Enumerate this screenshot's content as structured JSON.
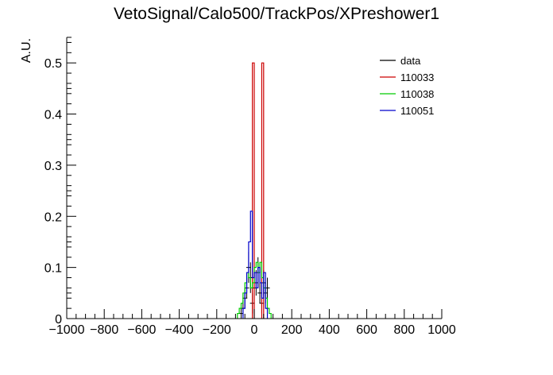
{
  "chart_data": {
    "type": "histogram",
    "title": "VetoSignal/Calo500/TrackPos/XPreshower1",
    "xlabel": "",
    "ylabel": "A.U.",
    "xlim": [
      -1000,
      1000
    ],
    "ylim": [
      0,
      0.55
    ],
    "x_ticks": [
      -1000,
      -800,
      -600,
      -400,
      -200,
      0,
      200,
      400,
      600,
      800,
      1000
    ],
    "x_tick_labels": [
      "−1000",
      "−800",
      "−600",
      "−400",
      "−200",
      "0",
      "200",
      "400",
      "600",
      "800",
      "1000"
    ],
    "y_ticks": [
      0,
      0.1,
      0.2,
      0.3,
      0.4,
      0.5
    ],
    "y_tick_labels": [
      "0",
      "0.1",
      "0.2",
      "0.3",
      "0.4",
      "0.5"
    ],
    "grid": false,
    "legend_position": "top-right",
    "series": [
      {
        "name": "data",
        "style": "points",
        "color": "#000000",
        "points": [
          {
            "x": -70,
            "y": 0.01,
            "err": 0.01
          },
          {
            "x": -60,
            "y": 0.02,
            "err": 0.015
          },
          {
            "x": -50,
            "y": 0.04,
            "err": 0.02
          },
          {
            "x": -40,
            "y": 0.06,
            "err": 0.02
          },
          {
            "x": -30,
            "y": 0.1,
            "err": 0.03
          },
          {
            "x": -20,
            "y": 0.08,
            "err": 0.03
          },
          {
            "x": -10,
            "y": 0.03,
            "err": 0.02
          },
          {
            "x": 0,
            "y": 0.06,
            "err": 0.025
          },
          {
            "x": 10,
            "y": 0.07,
            "err": 0.025
          },
          {
            "x": 20,
            "y": 0.09,
            "err": 0.03
          },
          {
            "x": 30,
            "y": 0.05,
            "err": 0.02
          },
          {
            "x": 40,
            "y": 0.03,
            "err": 0.02
          },
          {
            "x": 50,
            "y": 0.07,
            "err": 0.025
          },
          {
            "x": 60,
            "y": 0.05,
            "err": 0.02
          },
          {
            "x": 70,
            "y": 0.06,
            "err": 0.02
          }
        ]
      },
      {
        "name": "110033",
        "style": "step",
        "color": "#cc0000",
        "bins": [
          {
            "x0": -10,
            "x1": 0,
            "y": 0.5
          },
          {
            "x0": 40,
            "x1": 50,
            "y": 0.5
          }
        ]
      },
      {
        "name": "110038",
        "style": "step",
        "color": "#00cc00",
        "bins": [
          {
            "x0": -90,
            "x1": -80,
            "y": 0.01
          },
          {
            "x0": -80,
            "x1": -70,
            "y": 0.02
          },
          {
            "x0": -70,
            "x1": -60,
            "y": 0.03
          },
          {
            "x0": -60,
            "x1": -50,
            "y": 0.05
          },
          {
            "x0": -50,
            "x1": -40,
            "y": 0.07
          },
          {
            "x0": -40,
            "x1": -30,
            "y": 0.09
          },
          {
            "x0": -30,
            "x1": -20,
            "y": 0.08
          },
          {
            "x0": -20,
            "x1": -10,
            "y": 0.06
          },
          {
            "x0": -10,
            "x1": 0,
            "y": 0.07
          },
          {
            "x0": 0,
            "x1": 10,
            "y": 0.1
          },
          {
            "x0": 10,
            "x1": 20,
            "y": 0.11
          },
          {
            "x0": 20,
            "x1": 30,
            "y": 0.09
          },
          {
            "x0": 30,
            "x1": 40,
            "y": 0.11
          },
          {
            "x0": 40,
            "x1": 50,
            "y": 0.08
          },
          {
            "x0": 50,
            "x1": 60,
            "y": 0.06
          },
          {
            "x0": 60,
            "x1": 70,
            "y": 0.04
          },
          {
            "x0": 70,
            "x1": 80,
            "y": 0.02
          },
          {
            "x0": 80,
            "x1": 90,
            "y": 0.01
          }
        ]
      },
      {
        "name": "110051",
        "style": "step",
        "color": "#0000cc",
        "bins": [
          {
            "x0": -60,
            "x1": -50,
            "y": 0.02
          },
          {
            "x0": -50,
            "x1": -40,
            "y": 0.05
          },
          {
            "x0": -40,
            "x1": -30,
            "y": 0.09
          },
          {
            "x0": -30,
            "x1": -20,
            "y": 0.15
          },
          {
            "x0": -20,
            "x1": -10,
            "y": 0.21
          },
          {
            "x0": -10,
            "x1": 0,
            "y": 0.08
          },
          {
            "x0": 0,
            "x1": 10,
            "y": 0.09
          },
          {
            "x0": 10,
            "x1": 20,
            "y": 0.06
          },
          {
            "x0": 20,
            "x1": 30,
            "y": 0.1
          },
          {
            "x0": 30,
            "x1": 40,
            "y": 0.07
          },
          {
            "x0": 40,
            "x1": 50,
            "y": 0.04
          },
          {
            "x0": 50,
            "x1": 60,
            "y": 0.09
          },
          {
            "x0": 60,
            "x1": 70,
            "y": 0.02
          }
        ]
      }
    ]
  }
}
